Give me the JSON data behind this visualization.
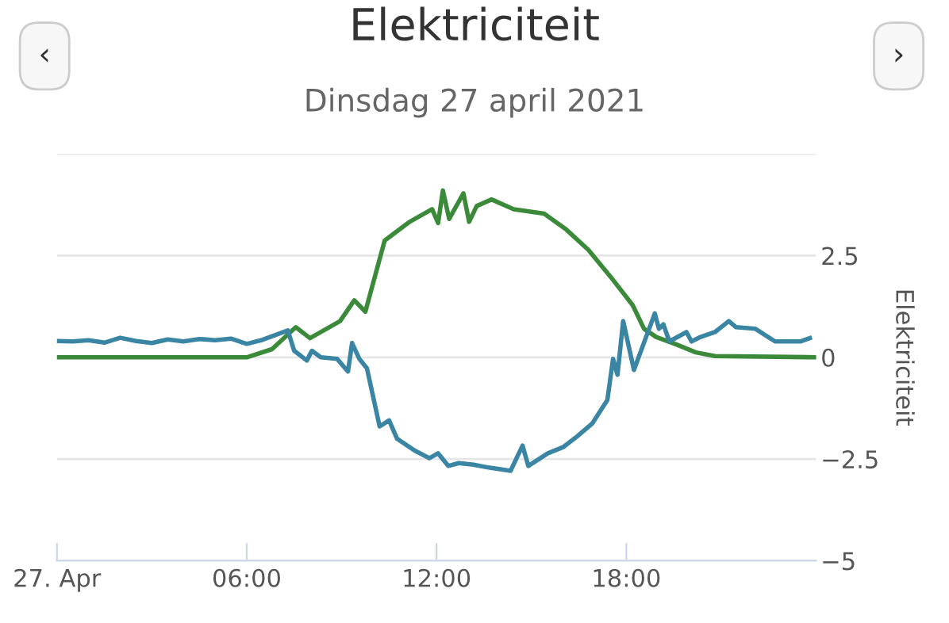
{
  "chart_data": {
    "type": "line",
    "title": "Elektriciteit",
    "subtitle": "Dinsdag 27 april 2021",
    "ylabel": "Elektriciteit",
    "annotations": [
      "‹",
      "›"
    ],
    "xlim": [
      0,
      24
    ],
    "xticks": [
      {
        "value": 0,
        "label": "27. Apr"
      },
      {
        "value": 6,
        "label": "06:00"
      },
      {
        "value": 12,
        "label": "12:00"
      },
      {
        "value": 18,
        "label": "18:00"
      }
    ],
    "ylim": [
      -5,
      5
    ],
    "yticks": [
      {
        "value": -5,
        "label": "−5"
      },
      {
        "value": -2.5,
        "label": "−2.5"
      },
      0,
      2.5,
      {
        "value": 5,
        "label": null
      }
    ],
    "grid": "y",
    "marker": "none",
    "line_style": "solid",
    "series": [
      {
        "color": "#3a8a3a",
        "x": [
          0,
          6,
          6.8,
          7.55,
          8.0,
          8.95,
          9.4,
          9.75,
          10.36,
          11.15,
          11.86,
          12.05,
          12.2,
          12.4,
          12.57,
          12.85,
          13.03,
          13.27,
          13.74,
          14.44,
          15.4,
          16.1,
          16.8,
          17.5,
          18.2,
          18.56,
          18.94,
          19.6,
          20.2,
          20.8,
          24
        ],
        "values": [
          0,
          0,
          0.2,
          0.74,
          0.47,
          0.89,
          1.4,
          1.12,
          2.87,
          3.33,
          3.64,
          3.3,
          4.1,
          3.4,
          3.64,
          4.03,
          3.33,
          3.72,
          3.88,
          3.64,
          3.53,
          3.14,
          2.64,
          1.98,
          1.28,
          0.7,
          0.5,
          0.31,
          0.12,
          0.03,
          0
        ]
      },
      {
        "color": "#3a85a3",
        "x": [
          0,
          0.5,
          1,
          1.5,
          2,
          2.5,
          3,
          3.5,
          4,
          4.5,
          5,
          5.5,
          6,
          6.5,
          7.3,
          7.5,
          7.9,
          8.06,
          8.34,
          8.86,
          9.2,
          9.33,
          9.56,
          9.8,
          10.2,
          10.5,
          10.75,
          11.3,
          11.77,
          12.05,
          12.37,
          12.7,
          13.17,
          13.64,
          14.34,
          14.72,
          14.9,
          15.52,
          16.0,
          16.45,
          16.92,
          17.4,
          17.58,
          17.72,
          17.9,
          18.24,
          18.9,
          19.03,
          19.17,
          19.36,
          19.9,
          20.06,
          20.35,
          20.8,
          21.24,
          21.47,
          22.08,
          22.7,
          23.5,
          23.8
        ],
        "values": [
          0.4,
          0.39,
          0.42,
          0.36,
          0.48,
          0.4,
          0.35,
          0.44,
          0.39,
          0.45,
          0.42,
          0.46,
          0.33,
          0.43,
          0.66,
          0.16,
          -0.08,
          0.16,
          0,
          -0.04,
          -0.35,
          0.35,
          -0.04,
          -0.27,
          -1.7,
          -1.55,
          -2.0,
          -2.29,
          -2.48,
          -2.36,
          -2.67,
          -2.6,
          -2.64,
          -2.71,
          -2.79,
          -2.17,
          -2.67,
          -2.36,
          -2.21,
          -1.94,
          -1.63,
          -1.05,
          -0.04,
          -0.43,
          0.89,
          -0.31,
          1.08,
          0.7,
          0.81,
          0.39,
          0.62,
          0.39,
          0.5,
          0.62,
          0.89,
          0.74,
          0.7,
          0.39,
          0.39,
          0.47
        ]
      }
    ]
  }
}
